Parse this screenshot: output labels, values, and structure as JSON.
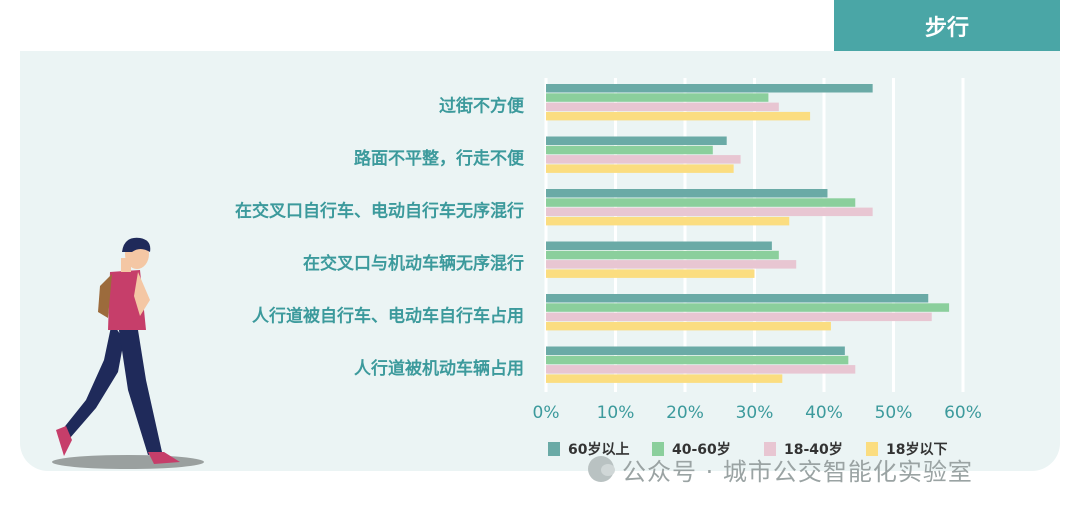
{
  "panel_title": "步行",
  "watermark": "公众号 · 城市公交智能化实验室",
  "colors": {
    "60up": "#6aaaa6",
    "40to60": "#8bcf9c",
    "18to40": "#e8c6d2",
    "under18": "#fbdd80",
    "label": "#3c9a9c",
    "tab": "#4aa6a6"
  },
  "chart_data": {
    "type": "bar",
    "orientation": "horizontal",
    "categories": [
      "过街不方便",
      "路面不平整，行走不便",
      "在交叉口自行车、电动自行车无序混行",
      "在交叉口与机动车辆无序混行",
      "人行道被自行车、电动车自行车占用",
      "人行道被机动车辆占用"
    ],
    "series": [
      {
        "name": "60岁以上",
        "color": "#6aaaa6",
        "values": [
          47,
          26,
          40.5,
          32.5,
          55,
          43
        ]
      },
      {
        "name": "40-60岁",
        "color": "#8bcf9c",
        "values": [
          32,
          24,
          44.5,
          33.5,
          58,
          43.5
        ]
      },
      {
        "name": "18-40岁",
        "color": "#e8c6d2",
        "values": [
          33.5,
          28,
          47,
          36,
          55.5,
          44.5
        ]
      },
      {
        "name": "18岁以下",
        "color": "#fbdd80",
        "values": [
          38,
          27,
          35,
          30,
          41,
          34
        ]
      }
    ],
    "xticks": [
      "0%",
      "10%",
      "20%",
      "30%",
      "40%",
      "50%",
      "60%"
    ],
    "xlim": [
      0,
      65
    ],
    "grid": true,
    "legend": "bottom"
  }
}
